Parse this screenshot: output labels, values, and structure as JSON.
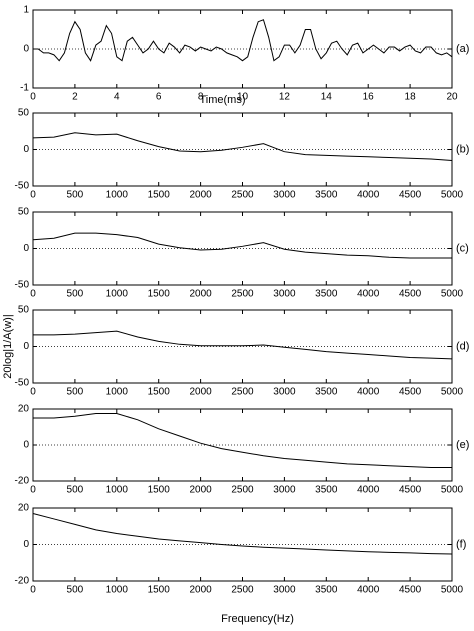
{
  "chart_data": [
    {
      "type": "line",
      "label": "(a)",
      "xlabel": "Time(ms)",
      "color": "#000000",
      "zero_line": true,
      "x": [
        0,
        0.25,
        0.5,
        0.75,
        1,
        1.25,
        1.5,
        1.75,
        2,
        2.25,
        2.5,
        2.75,
        3,
        3.25,
        3.5,
        3.75,
        4,
        4.25,
        4.5,
        4.75,
        5,
        5.25,
        5.5,
        5.75,
        6,
        6.25,
        6.5,
        6.75,
        7,
        7.25,
        7.5,
        7.75,
        8,
        8.25,
        8.5,
        8.75,
        9,
        9.25,
        9.5,
        9.75,
        10,
        10.25,
        10.5,
        10.75,
        11,
        11.25,
        11.5,
        11.75,
        12,
        12.25,
        12.5,
        12.75,
        13,
        13.25,
        13.5,
        13.75,
        14,
        14.25,
        14.5,
        14.75,
        15,
        15.25,
        15.5,
        15.75,
        16,
        16.25,
        16.5,
        16.75,
        17,
        17.25,
        17.5,
        17.75,
        18,
        18.25,
        18.5,
        18.75,
        19,
        19.25,
        19.5,
        19.75,
        20
      ],
      "values": [
        0,
        0,
        -0.1,
        -0.1,
        -0.15,
        -0.3,
        -0.1,
        0.4,
        0.7,
        0.5,
        -0.1,
        -0.3,
        0.1,
        0.2,
        0.6,
        0.4,
        -0.2,
        -0.3,
        0.2,
        0.3,
        0.1,
        -0.1,
        0,
        0.2,
        0,
        -0.1,
        0.15,
        0.05,
        -0.1,
        0.1,
        0.05,
        -0.05,
        0.05,
        0,
        -0.05,
        0.05,
        0,
        -0.1,
        -0.15,
        -0.2,
        -0.3,
        -0.2,
        0.3,
        0.7,
        0.75,
        0.3,
        -0.3,
        -0.2,
        0.1,
        0.1,
        -0.1,
        0.1,
        0.5,
        0.5,
        0,
        -0.25,
        -0.1,
        0.15,
        0.2,
        0,
        -0.15,
        0.1,
        0.15,
        -0.1,
        0,
        0.1,
        0,
        -0.1,
        0.05,
        0.05,
        -0.05,
        0.05,
        0.1,
        -0.05,
        -0.1,
        0.05,
        0.05,
        -0.1,
        -0.15,
        -0.1,
        -0.2
      ],
      "xlim": [
        0,
        20
      ],
      "xticks": [
        0,
        2,
        4,
        6,
        8,
        10,
        12,
        14,
        16,
        18,
        20
      ],
      "ylim": [
        -1,
        1
      ],
      "yticks": [
        -1,
        0,
        1
      ]
    },
    {
      "type": "line",
      "label": "(b)",
      "color": "#000000",
      "zero_line": true,
      "x": [
        0,
        250,
        500,
        750,
        1000,
        1250,
        1500,
        1750,
        2000,
        2250,
        2500,
        2750,
        3000,
        3250,
        3500,
        3750,
        4000,
        4250,
        4500,
        4750,
        5000
      ],
      "values": [
        16,
        17,
        23,
        20,
        21,
        12,
        4,
        -2,
        -3,
        -1,
        3,
        8,
        -3,
        -7,
        -8,
        -9,
        -10,
        -11,
        -12,
        -13,
        -15
      ],
      "xlim": [
        0,
        5000
      ],
      "xticks": [
        0,
        500,
        1000,
        1500,
        2000,
        2500,
        3000,
        3500,
        4000,
        4500,
        5000
      ],
      "ylim": [
        -50,
        50
      ],
      "yticks": [
        -50,
        0,
        50
      ]
    },
    {
      "type": "line",
      "label": "(c)",
      "color": "#000000",
      "zero_line": true,
      "x": [
        0,
        250,
        500,
        750,
        1000,
        1250,
        1500,
        1750,
        2000,
        2250,
        2500,
        2750,
        3000,
        3250,
        3500,
        3750,
        4000,
        4250,
        4500,
        4750,
        5000
      ],
      "values": [
        12,
        14,
        21,
        21,
        19,
        15,
        6,
        1,
        -2,
        -1,
        3,
        8,
        -1,
        -5,
        -7,
        -9,
        -10,
        -12,
        -13,
        -13,
        -13
      ],
      "xlim": [
        0,
        5000
      ],
      "xticks": [
        0,
        500,
        1000,
        1500,
        2000,
        2500,
        3000,
        3500,
        4000,
        4500,
        5000
      ],
      "ylim": [
        -50,
        50
      ],
      "yticks": [
        -50,
        0,
        50
      ]
    },
    {
      "type": "line",
      "label": "(d)",
      "ylabel": "20log|1/A(w)|",
      "color": "#000000",
      "zero_line": true,
      "x": [
        0,
        250,
        500,
        750,
        1000,
        1250,
        1500,
        1750,
        2000,
        2250,
        2500,
        2750,
        3000,
        3250,
        3500,
        3750,
        4000,
        4250,
        4500,
        4750,
        5000
      ],
      "values": [
        16,
        16,
        17,
        19,
        21,
        13,
        7,
        3,
        1,
        1,
        1,
        2,
        -1,
        -4,
        -7,
        -9,
        -11,
        -13,
        -15,
        -16,
        -17
      ],
      "xlim": [
        0,
        5000
      ],
      "xticks": [
        0,
        500,
        1000,
        1500,
        2000,
        2500,
        3000,
        3500,
        4000,
        4500,
        5000
      ],
      "ylim": [
        -50,
        50
      ],
      "yticks": [
        -50,
        0,
        50
      ]
    },
    {
      "type": "line",
      "label": "(e)",
      "color": "#000000",
      "zero_line": true,
      "x": [
        0,
        250,
        500,
        750,
        1000,
        1250,
        1500,
        1750,
        2000,
        2250,
        2500,
        2750,
        3000,
        3250,
        3500,
        3750,
        4000,
        4250,
        4500,
        4750,
        5000
      ],
      "values": [
        15,
        15,
        16,
        17.5,
        17.5,
        14,
        9,
        5,
        1,
        -2,
        -4,
        -6,
        -7.5,
        -8.5,
        -9.5,
        -10.5,
        -11,
        -11.5,
        -12,
        -12.5,
        -12.5
      ],
      "xlim": [
        0,
        5000
      ],
      "xticks": [
        0,
        500,
        1000,
        1500,
        2000,
        2500,
        3000,
        3500,
        4000,
        4500,
        5000
      ],
      "ylim": [
        -20,
        20
      ],
      "yticks": [
        -20,
        0,
        20
      ]
    },
    {
      "type": "line",
      "label": "(f)",
      "xlabel": "Frequency(Hz)",
      "color": "#000000",
      "zero_line": true,
      "x": [
        0,
        250,
        500,
        750,
        1000,
        1250,
        1500,
        1750,
        2000,
        2250,
        2500,
        2750,
        3000,
        3250,
        3500,
        3750,
        4000,
        4250,
        4500,
        4750,
        5000
      ],
      "values": [
        17,
        14,
        11,
        8,
        6,
        4.5,
        3,
        2,
        1,
        0,
        -0.8,
        -1.5,
        -2,
        -2.5,
        -3,
        -3.5,
        -4,
        -4.3,
        -4.6,
        -5,
        -5.2
      ],
      "xlim": [
        0,
        5000
      ],
      "xticks": [
        0,
        500,
        1000,
        1500,
        2000,
        2500,
        3000,
        3500,
        4000,
        4500,
        5000
      ],
      "ylim": [
        -20,
        20
      ],
      "yticks": [
        -20,
        0,
        20
      ]
    }
  ]
}
